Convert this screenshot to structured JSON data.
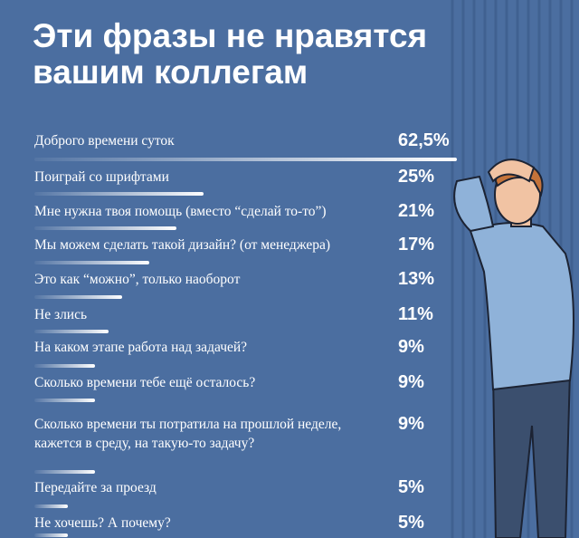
{
  "chart_data": {
    "type": "bar",
    "orientation": "horizontal",
    "title": "Эти фразы не нравятся вашим коллегам",
    "categories": [
      "Доброго времени суток",
      "Поиграй со шрифтами",
      "Мне нужна твоя помощь (вместо “сделай то-то”)",
      "Мы можем сделать такой дизайн? (от менеджера)",
      "Это как “можно”, только наоборот",
      "Не злись",
      "На каком этапе работа над задачей?",
      "Сколько времени тебе ещё осталось?",
      "Сколько времени ты потратила на прошлой неделе, кажется в среду, на такую-то задачу?",
      "Передайте за проезд",
      "Не хочешь? А почему?"
    ],
    "values": [
      62.5,
      25,
      21,
      17,
      13,
      11,
      9,
      9,
      9,
      5,
      5
    ],
    "value_labels": [
      "62,5%",
      "25%",
      "21%",
      "17%",
      "13%",
      "11%",
      "9%",
      "9%",
      "9%",
      "5%",
      "5%"
    ],
    "color": "#ffffff"
  }
}
